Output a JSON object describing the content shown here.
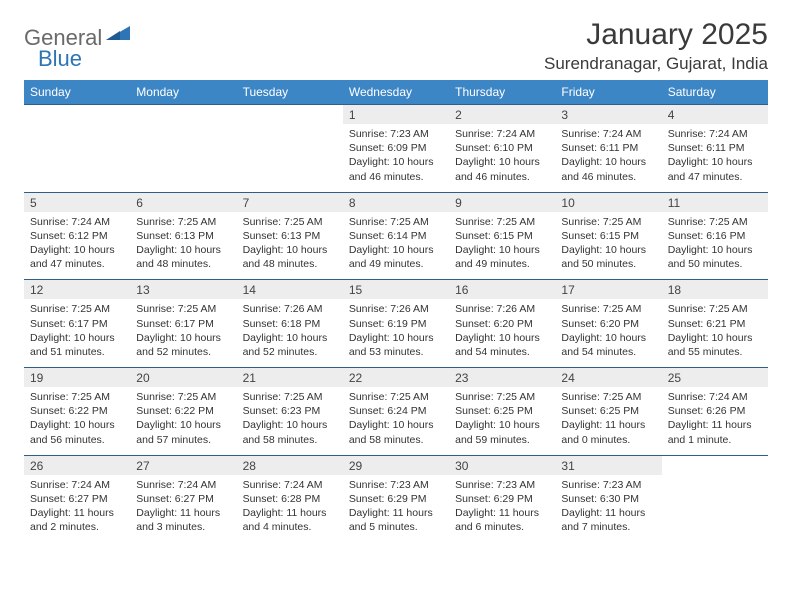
{
  "brand": {
    "part1": "General",
    "part2": "Blue"
  },
  "title": "January 2025",
  "location": "Surendranagar, Gujarat, India",
  "colors": {
    "header_bg": "#3d86c6",
    "header_text": "#ffffff",
    "daynum_bg": "#ededed",
    "row_border": "#2e5e8c",
    "logo_gray": "#6a6a6a",
    "logo_blue": "#2e75b6"
  },
  "weekdays": [
    "Sunday",
    "Monday",
    "Tuesday",
    "Wednesday",
    "Thursday",
    "Friday",
    "Saturday"
  ],
  "weeks": [
    {
      "nums": [
        "",
        "",
        "",
        "1",
        "2",
        "3",
        "4"
      ],
      "cells": [
        null,
        null,
        null,
        {
          "sr": "7:23 AM",
          "ss": "6:09 PM",
          "dl": "10 hours and 46 minutes."
        },
        {
          "sr": "7:24 AM",
          "ss": "6:10 PM",
          "dl": "10 hours and 46 minutes."
        },
        {
          "sr": "7:24 AM",
          "ss": "6:11 PM",
          "dl": "10 hours and 46 minutes."
        },
        {
          "sr": "7:24 AM",
          "ss": "6:11 PM",
          "dl": "10 hours and 47 minutes."
        }
      ]
    },
    {
      "nums": [
        "5",
        "6",
        "7",
        "8",
        "9",
        "10",
        "11"
      ],
      "cells": [
        {
          "sr": "7:24 AM",
          "ss": "6:12 PM",
          "dl": "10 hours and 47 minutes."
        },
        {
          "sr": "7:25 AM",
          "ss": "6:13 PM",
          "dl": "10 hours and 48 minutes."
        },
        {
          "sr": "7:25 AM",
          "ss": "6:13 PM",
          "dl": "10 hours and 48 minutes."
        },
        {
          "sr": "7:25 AM",
          "ss": "6:14 PM",
          "dl": "10 hours and 49 minutes."
        },
        {
          "sr": "7:25 AM",
          "ss": "6:15 PM",
          "dl": "10 hours and 49 minutes."
        },
        {
          "sr": "7:25 AM",
          "ss": "6:15 PM",
          "dl": "10 hours and 50 minutes."
        },
        {
          "sr": "7:25 AM",
          "ss": "6:16 PM",
          "dl": "10 hours and 50 minutes."
        }
      ]
    },
    {
      "nums": [
        "12",
        "13",
        "14",
        "15",
        "16",
        "17",
        "18"
      ],
      "cells": [
        {
          "sr": "7:25 AM",
          "ss": "6:17 PM",
          "dl": "10 hours and 51 minutes."
        },
        {
          "sr": "7:25 AM",
          "ss": "6:17 PM",
          "dl": "10 hours and 52 minutes."
        },
        {
          "sr": "7:26 AM",
          "ss": "6:18 PM",
          "dl": "10 hours and 52 minutes."
        },
        {
          "sr": "7:26 AM",
          "ss": "6:19 PM",
          "dl": "10 hours and 53 minutes."
        },
        {
          "sr": "7:26 AM",
          "ss": "6:20 PM",
          "dl": "10 hours and 54 minutes."
        },
        {
          "sr": "7:25 AM",
          "ss": "6:20 PM",
          "dl": "10 hours and 54 minutes."
        },
        {
          "sr": "7:25 AM",
          "ss": "6:21 PM",
          "dl": "10 hours and 55 minutes."
        }
      ]
    },
    {
      "nums": [
        "19",
        "20",
        "21",
        "22",
        "23",
        "24",
        "25"
      ],
      "cells": [
        {
          "sr": "7:25 AM",
          "ss": "6:22 PM",
          "dl": "10 hours and 56 minutes."
        },
        {
          "sr": "7:25 AM",
          "ss": "6:22 PM",
          "dl": "10 hours and 57 minutes."
        },
        {
          "sr": "7:25 AM",
          "ss": "6:23 PM",
          "dl": "10 hours and 58 minutes."
        },
        {
          "sr": "7:25 AM",
          "ss": "6:24 PM",
          "dl": "10 hours and 58 minutes."
        },
        {
          "sr": "7:25 AM",
          "ss": "6:25 PM",
          "dl": "10 hours and 59 minutes."
        },
        {
          "sr": "7:25 AM",
          "ss": "6:25 PM",
          "dl": "11 hours and 0 minutes."
        },
        {
          "sr": "7:24 AM",
          "ss": "6:26 PM",
          "dl": "11 hours and 1 minute."
        }
      ]
    },
    {
      "nums": [
        "26",
        "27",
        "28",
        "29",
        "30",
        "31",
        ""
      ],
      "cells": [
        {
          "sr": "7:24 AM",
          "ss": "6:27 PM",
          "dl": "11 hours and 2 minutes."
        },
        {
          "sr": "7:24 AM",
          "ss": "6:27 PM",
          "dl": "11 hours and 3 minutes."
        },
        {
          "sr": "7:24 AM",
          "ss": "6:28 PM",
          "dl": "11 hours and 4 minutes."
        },
        {
          "sr": "7:23 AM",
          "ss": "6:29 PM",
          "dl": "11 hours and 5 minutes."
        },
        {
          "sr": "7:23 AM",
          "ss": "6:29 PM",
          "dl": "11 hours and 6 minutes."
        },
        {
          "sr": "7:23 AM",
          "ss": "6:30 PM",
          "dl": "11 hours and 7 minutes."
        },
        null
      ]
    }
  ],
  "labels": {
    "sunrise": "Sunrise:",
    "sunset": "Sunset:",
    "daylight": "Daylight:"
  }
}
